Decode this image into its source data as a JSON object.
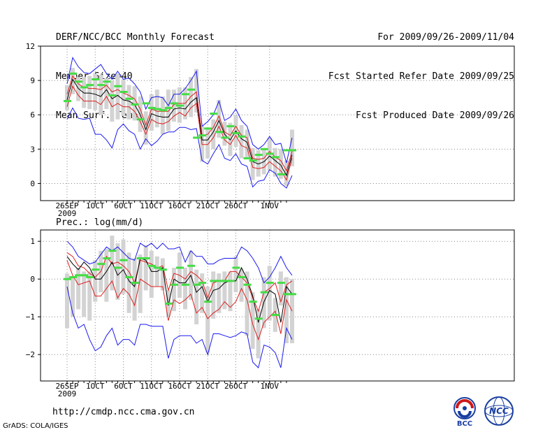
{
  "header": {
    "title": "DERF/NCC/BCC Monthly Forecast",
    "member_size": "Member Size=40",
    "variable": "Mean Surf. Temp.: °C",
    "period": "For 2009/09/26-2009/11/04",
    "started": "Fcst Started Refer Date 2009/09/25",
    "produced": "Fcst Produced Date 2009/09/26"
  },
  "footer": {
    "url": "http://cmdp.ncc.cma.gov.cn",
    "credit": "GrADS: COLA/IGES",
    "logo_left_text": "BCC",
    "logo_right_text": "NCC"
  },
  "x_ticks": [
    {
      "day": 0,
      "label": "26SEP",
      "sub": "2009"
    },
    {
      "day": 5,
      "label": "1OCT",
      "sub": ""
    },
    {
      "day": 10,
      "label": "6OCT",
      "sub": ""
    },
    {
      "day": 15,
      "label": "11OCT",
      "sub": ""
    },
    {
      "day": 20,
      "label": "16OCT",
      "sub": ""
    },
    {
      "day": 25,
      "label": "21OCT",
      "sub": ""
    },
    {
      "day": 30,
      "label": "26OCT",
      "sub": ""
    },
    {
      "day": 36,
      "label": "1NOV",
      "sub": ""
    }
  ],
  "colors": {
    "range": "#d3d3d3",
    "median": "#44dd44",
    "mean": "#000000",
    "spread": "#dd2020",
    "extreme": "#1a1aee",
    "grid": "#888888"
  },
  "chart_data": [
    {
      "type": "line",
      "title": "Mean Surf. Temp.: °C",
      "ylim": [
        -1.5,
        12
      ],
      "yticks": [
        0,
        3,
        6,
        9,
        12
      ],
      "x_days": 40,
      "series": [
        {
          "name": "max",
          "values": [
            8.7,
            11.0,
            10.2,
            9.7,
            9.6,
            10.0,
            10.4,
            9.6,
            9.1,
            9.8,
            9.1,
            9.2,
            8.7,
            8.0,
            6.5,
            7.5,
            7.6,
            7.5,
            6.8,
            7.8,
            7.8,
            8.3,
            9.0,
            9.8,
            5.0,
            5.4,
            6.0,
            7.2,
            5.5,
            5.8,
            6.5,
            5.5,
            5.0,
            3.4,
            3.0,
            3.4,
            4.1,
            3.4,
            3.5,
            1.8,
            4.0
          ]
        },
        {
          "name": "upper",
          "values": [
            7.8,
            9.4,
            8.7,
            8.4,
            8.3,
            8.3,
            8.2,
            8.6,
            8.0,
            8.2,
            7.9,
            7.7,
            7.4,
            6.5,
            5.1,
            6.5,
            6.3,
            6.3,
            6.3,
            6.9,
            7.0,
            7.0,
            7.6,
            8.0,
            4.2,
            4.3,
            4.9,
            5.9,
            4.5,
            4.2,
            5.0,
            4.2,
            4.0,
            2.2,
            2.1,
            2.2,
            2.8,
            2.3,
            2.0,
            1.1,
            2.8
          ]
        },
        {
          "name": "mean",
          "values": [
            7.3,
            9.1,
            8.3,
            7.9,
            7.9,
            7.8,
            7.6,
            8.2,
            7.4,
            7.7,
            7.3,
            7.2,
            6.9,
            6.0,
            4.7,
            6.1,
            5.9,
            5.8,
            5.8,
            6.5,
            6.6,
            6.5,
            7.1,
            7.5,
            3.8,
            3.8,
            4.5,
            5.5,
            4.3,
            3.8,
            4.6,
            3.9,
            3.6,
            1.9,
            1.7,
            1.9,
            2.4,
            2.0,
            1.6,
            0.7,
            2.5
          ]
        },
        {
          "name": "lower",
          "values": [
            6.7,
            8.5,
            7.7,
            7.2,
            7.2,
            7.2,
            6.9,
            7.6,
            6.7,
            7.0,
            6.7,
            6.7,
            6.3,
            5.4,
            4.3,
            5.6,
            5.3,
            5.2,
            5.4,
            5.9,
            6.2,
            5.9,
            6.6,
            7.0,
            3.4,
            3.4,
            4.0,
            5.0,
            3.8,
            3.4,
            4.2,
            3.3,
            3.1,
            1.4,
            1.3,
            1.4,
            1.9,
            1.5,
            1.1,
            0.3,
            2.2
          ]
        },
        {
          "name": "min",
          "values": [
            5.6,
            6.6,
            5.7,
            5.6,
            5.7,
            4.3,
            4.3,
            3.8,
            3.1,
            4.7,
            5.2,
            4.6,
            4.3,
            3.0,
            3.9,
            3.3,
            3.7,
            4.3,
            4.5,
            4.5,
            4.9,
            4.9,
            4.7,
            4.8,
            2.0,
            1.7,
            2.6,
            3.4,
            2.2,
            2.0,
            2.6,
            1.7,
            1.5,
            -0.3,
            0.2,
            0.3,
            1.2,
            0.9,
            0.0,
            -0.4,
            0.7
          ]
        },
        {
          "name": "median",
          "values": [
            7.2,
            9.6,
            8.9,
            8.4,
            8.6,
            9.1,
            8.6,
            8.9,
            7.7,
            8.5,
            8.0,
            7.4,
            6.9,
            5.6,
            7.0,
            6.6,
            6.5,
            6.4,
            6.6,
            7.0,
            6.8,
            7.8,
            8.2,
            4.0,
            4.2,
            4.8,
            6.1,
            4.5,
            4.0,
            5.0,
            4.4,
            4.1,
            2.2,
            2.0,
            2.5,
            3.0,
            2.6,
            2.3,
            0.8,
            2.9,
            2.9
          ]
        }
      ],
      "range_bars": [
        [
          6.4,
          8.6
        ],
        [
          7.8,
          10.1
        ],
        [
          7.2,
          9.3
        ],
        [
          6.6,
          9.3
        ],
        [
          6.5,
          9.4
        ],
        [
          6.4,
          9.6
        ],
        [
          6.0,
          9.5
        ],
        [
          6.5,
          9.2
        ],
        [
          5.4,
          9.0
        ],
        [
          5.6,
          9.6
        ],
        [
          5.9,
          9.1
        ],
        [
          5.6,
          8.6
        ],
        [
          5.5,
          8.5
        ],
        [
          4.5,
          7.6
        ],
        [
          3.4,
          6.3
        ],
        [
          4.6,
          7.8
        ],
        [
          4.9,
          8.2
        ],
        [
          4.3,
          7.6
        ],
        [
          4.6,
          8.2
        ],
        [
          5.4,
          8.2
        ],
        [
          5.3,
          8.4
        ],
        [
          5.6,
          8.4
        ],
        [
          5.8,
          9.3
        ],
        [
          6.2,
          10.0
        ],
        [
          1.9,
          5.0
        ],
        [
          2.2,
          4.9
        ],
        [
          3.0,
          5.6
        ],
        [
          4.0,
          7.3
        ],
        [
          3.3,
          5.4
        ],
        [
          2.4,
          5.3
        ],
        [
          3.2,
          6.0
        ],
        [
          2.2,
          5.1
        ],
        [
          2.3,
          4.7
        ],
        [
          0.3,
          3.1
        ],
        [
          0.6,
          2.9
        ],
        [
          0.8,
          3.1
        ],
        [
          1.1,
          4.0
        ],
        [
          0.6,
          3.1
        ],
        [
          0.4,
          3.0
        ],
        [
          -0.2,
          2.0
        ],
        [
          1.5,
          4.7
        ]
      ]
    },
    {
      "type": "line",
      "title": "Prec.: log(mm/d)",
      "ylim": [
        -2.7,
        1.3
      ],
      "yticks": [
        -2,
        -1,
        0,
        1
      ],
      "x_days": 40,
      "series": [
        {
          "name": "max",
          "values": [
            1.0,
            0.85,
            0.6,
            0.5,
            0.4,
            0.45,
            0.65,
            0.85,
            0.75,
            0.85,
            0.7,
            0.55,
            0.5,
            0.95,
            0.85,
            0.95,
            0.8,
            0.95,
            0.8,
            0.8,
            0.85,
            0.45,
            0.75,
            0.6,
            0.6,
            0.4,
            0.4,
            0.5,
            0.55,
            0.55,
            0.55,
            0.85,
            0.75,
            0.55,
            0.3,
            -0.1,
            0.05,
            0.3,
            0.6,
            0.3,
            0.1
          ]
        },
        {
          "name": "upper",
          "values": [
            0.7,
            0.6,
            0.35,
            0.3,
            0.15,
            0.05,
            0.2,
            0.6,
            0.4,
            0.45,
            0.35,
            0.2,
            -0.1,
            0.5,
            0.45,
            0.4,
            0.3,
            0.35,
            -0.3,
            0.15,
            0.1,
            0.0,
            0.2,
            0.1,
            -0.05,
            -0.5,
            -0.1,
            -0.05,
            -0.05,
            0.2,
            0.2,
            0.05,
            -0.1,
            -0.5,
            -0.85,
            -0.35,
            -0.25,
            -0.1,
            -0.6,
            -0.15,
            -0.05
          ]
        },
        {
          "name": "mean",
          "values": [
            0.6,
            0.4,
            0.25,
            0.45,
            0.3,
            0.0,
            0.0,
            0.2,
            0.45,
            0.1,
            0.25,
            -0.05,
            -0.2,
            0.55,
            0.5,
            0.2,
            0.2,
            0.3,
            -0.7,
            0.0,
            -0.1,
            -0.1,
            0.1,
            -0.35,
            -0.2,
            -0.6,
            -0.3,
            -0.25,
            -0.1,
            -0.05,
            -0.05,
            0.3,
            0.0,
            -0.45,
            -1.15,
            -0.6,
            -0.3,
            -0.4,
            -1.15,
            -0.2,
            -0.4
          ]
        },
        {
          "name": "lower",
          "values": [
            0.5,
            0.1,
            -0.15,
            -0.1,
            -0.05,
            -0.45,
            -0.45,
            -0.25,
            -0.05,
            -0.5,
            -0.25,
            -0.4,
            -0.7,
            0.0,
            -0.1,
            -0.2,
            -0.2,
            -0.2,
            -1.1,
            -0.55,
            -0.65,
            -0.55,
            -0.4,
            -0.9,
            -0.75,
            -1.05,
            -0.9,
            -0.8,
            -0.6,
            -0.75,
            -0.6,
            -0.25,
            -0.55,
            -1.2,
            -1.6,
            -1.15,
            -1.0,
            -0.85,
            -1.45,
            -0.55,
            -0.85
          ]
        },
        {
          "name": "min",
          "values": [
            -0.2,
            -0.9,
            -1.3,
            -1.2,
            -1.6,
            -1.9,
            -1.8,
            -1.5,
            -1.3,
            -1.75,
            -1.6,
            -1.6,
            -1.75,
            -1.2,
            -1.2,
            -1.25,
            -1.25,
            -1.25,
            -2.1,
            -1.6,
            -1.5,
            -1.5,
            -1.5,
            -1.7,
            -1.6,
            -2.0,
            -1.45,
            -1.45,
            -1.5,
            -1.55,
            -1.5,
            -1.4,
            -1.45,
            -2.2,
            -2.35,
            -1.75,
            -1.8,
            -1.95,
            -2.35,
            -1.3,
            -1.6
          ]
        },
        {
          "name": "median",
          "values": [
            0.0,
            0.05,
            0.1,
            0.1,
            0.05,
            0.25,
            0.4,
            0.55,
            0.75,
            0.3,
            0.5,
            0.05,
            -0.1,
            0.55,
            0.55,
            0.35,
            0.3,
            0.25,
            -0.65,
            -0.15,
            0.3,
            -0.15,
            0.35,
            -0.15,
            -0.1,
            -0.6,
            -0.05,
            -0.05,
            -0.05,
            -0.05,
            0.3,
            0.05,
            -0.15,
            -0.6,
            -1.05,
            -0.35,
            -0.1,
            -0.95,
            -0.1,
            -0.4,
            -0.4
          ]
        }
      ],
      "range_bars": [
        [
          -1.3,
          0.15
        ],
        [
          -1.0,
          0.05
        ],
        [
          -0.8,
          0.3
        ],
        [
          -1.0,
          0.2
        ],
        [
          -1.1,
          0.2
        ],
        [
          -0.6,
          0.5
        ],
        [
          -0.35,
          0.75
        ],
        [
          -0.6,
          0.8
        ],
        [
          -0.3,
          1.15
        ],
        [
          -0.55,
          0.95
        ],
        [
          -0.4,
          1.05
        ],
        [
          -0.9,
          0.7
        ],
        [
          -1.1,
          0.55
        ],
        [
          -0.9,
          0.65
        ],
        [
          -0.3,
          0.9
        ],
        [
          -0.5,
          0.75
        ],
        [
          -0.2,
          0.6
        ],
        [
          -0.3,
          0.55
        ],
        [
          -1.0,
          -0.3
        ],
        [
          -0.85,
          0.3
        ],
        [
          -0.5,
          0.7
        ],
        [
          -0.8,
          0.3
        ],
        [
          -0.55,
          0.75
        ],
        [
          -1.2,
          0.25
        ],
        [
          -0.9,
          0.15
        ],
        [
          -1.95,
          -0.2
        ],
        [
          -1.05,
          0.2
        ],
        [
          -0.9,
          0.15
        ],
        [
          -0.8,
          0.2
        ],
        [
          -0.85,
          0.2
        ],
        [
          -0.35,
          0.6
        ],
        [
          -0.6,
          0.25
        ],
        [
          -1.5,
          0.2
        ],
        [
          -1.85,
          -0.35
        ],
        [
          -2.1,
          -0.8
        ],
        [
          -1.3,
          0.05
        ],
        [
          -1.1,
          0.35
        ],
        [
          -1.4,
          -0.5
        ],
        [
          -0.7,
          0.2
        ],
        [
          -1.7,
          0.05
        ],
        [
          -1.7,
          0.0
        ]
      ]
    }
  ]
}
